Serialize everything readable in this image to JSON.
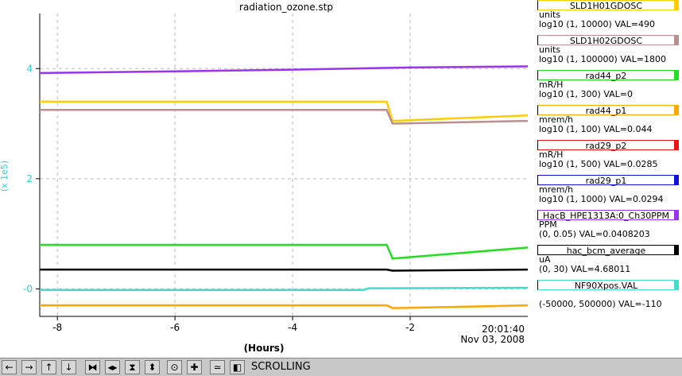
{
  "title": "radiation_ozone.stp",
  "y_axis_label": "(x 1e5)",
  "x_axis_label": "(Hours)",
  "timestamp": {
    "time": "20:01:40",
    "date": "Nov 03, 2008"
  },
  "legend": [
    {
      "name": "SLD1H01GDOSC",
      "units": "units",
      "scale": "log10 (1, 10000) VAL=490",
      "color": "#ffcc00"
    },
    {
      "name": "SLD1H02GDOSC",
      "units": "units",
      "scale": "log10 (1, 100000) VAL=1800",
      "color": "#bc8f8f"
    },
    {
      "name": "rad44_p2",
      "units": "mR/H",
      "scale": "log10 (1, 300) VAL=0",
      "color": "#22dd22"
    },
    {
      "name": "rad44_p1",
      "units": "mrem/h",
      "scale": "log10 (1, 100) VAL=0.044",
      "color": "#ffa500"
    },
    {
      "name": "rad29_p2",
      "units": "mR/H",
      "scale": "log10 (1, 500) VAL=0.0285",
      "color": "#ee1111"
    },
    {
      "name": "rad29_p1",
      "units": "mrem/h",
      "scale": "log10 (1, 1000) VAL=0.0294",
      "color": "#1111dd"
    },
    {
      "name": "HacB_HPE1313A:0_Ch30PPM",
      "units": "PPM",
      "scale": "(0, 0.05) VAL=0.0408203",
      "color": "#9933ee"
    },
    {
      "name": "hac_bcm_average",
      "units": "uA",
      "scale": "(0, 30) VAL=4.68011",
      "color": "#000000"
    },
    {
      "name": "NF90Xpos.VAL",
      "units": "",
      "scale": "(-50000, 500000) VAL=-110",
      "color": "#44ddcc"
    }
  ],
  "toolbar": {
    "scroll_label": "SCROLLING",
    "buttons": [
      {
        "name": "scroll-left-button",
        "glyph": "←"
      },
      {
        "name": "scroll-right-button",
        "glyph": "→"
      },
      {
        "name": "scroll-up-button",
        "glyph": "↑"
      },
      {
        "name": "scroll-down-button",
        "glyph": "↓"
      },
      {
        "name": "compress-x-button",
        "glyph": "⧓"
      },
      {
        "name": "expand-x-button",
        "glyph": "◂▸"
      },
      {
        "name": "compress-y-button",
        "glyph": "⧗"
      },
      {
        "name": "expand-y-button",
        "glyph": "⬍"
      },
      {
        "name": "zoom-button",
        "glyph": "⊙"
      },
      {
        "name": "add-button",
        "glyph": "✚"
      },
      {
        "name": "auto-scale-button",
        "glyph": "≃"
      },
      {
        "name": "restore-button",
        "glyph": "◧"
      }
    ]
  },
  "chart_data": {
    "type": "line",
    "xlabel": "(Hours)",
    "ylabel": "(x 1e5)",
    "xlim": [
      -8.3,
      0
    ],
    "ylim": [
      -0.5,
      5
    ],
    "x_ticks": [
      "-8",
      "-6",
      "-4",
      "-2"
    ],
    "y_ticks": [
      "-0",
      "2",
      "4"
    ],
    "x_tick_values": [
      -8,
      -6,
      -4,
      -2
    ],
    "y_tick_values": [
      0,
      2,
      4
    ],
    "grid": true,
    "series": [
      {
        "name": "HacB_HPE1313A:0_Ch30PPM",
        "color": "#9933ee",
        "x": [
          -8.3,
          -6,
          -4,
          -2,
          0
        ],
        "y": [
          3.92,
          3.95,
          3.98,
          4.02,
          4.04
        ]
      },
      {
        "name": "SLD1H01GDOSC",
        "color": "#ffcc00",
        "x": [
          -8.3,
          -2.4,
          -2.3,
          0
        ],
        "y": [
          3.4,
          3.4,
          3.05,
          3.15
        ]
      },
      {
        "name": "SLD1H02GDOSC",
        "color": "#bc8f8f",
        "x": [
          -8.3,
          -2.4,
          -2.3,
          0
        ],
        "y": [
          3.25,
          3.25,
          3.0,
          3.05
        ]
      },
      {
        "name": "rad44_p2",
        "color": "#22dd22",
        "x": [
          -8.3,
          -2.4,
          -2.3,
          0
        ],
        "y": [
          0.8,
          0.8,
          0.55,
          0.75
        ]
      },
      {
        "name": "hac_bcm_average",
        "color": "#000000",
        "x": [
          -8.3,
          -2.4,
          -2.3,
          0
        ],
        "y": [
          0.35,
          0.35,
          0.33,
          0.35
        ]
      },
      {
        "name": "NF90Xpos.VAL",
        "color": "#44ddcc",
        "x": [
          -8.3,
          -2.8,
          -2.7,
          0
        ],
        "y": [
          -0.02,
          -0.02,
          0.01,
          0.02
        ]
      },
      {
        "name": "rad44_p1",
        "color": "#ffa500",
        "x": [
          -8.3,
          -2.4,
          -2.3,
          0
        ],
        "y": [
          -0.3,
          -0.3,
          -0.35,
          -0.3
        ]
      }
    ]
  }
}
